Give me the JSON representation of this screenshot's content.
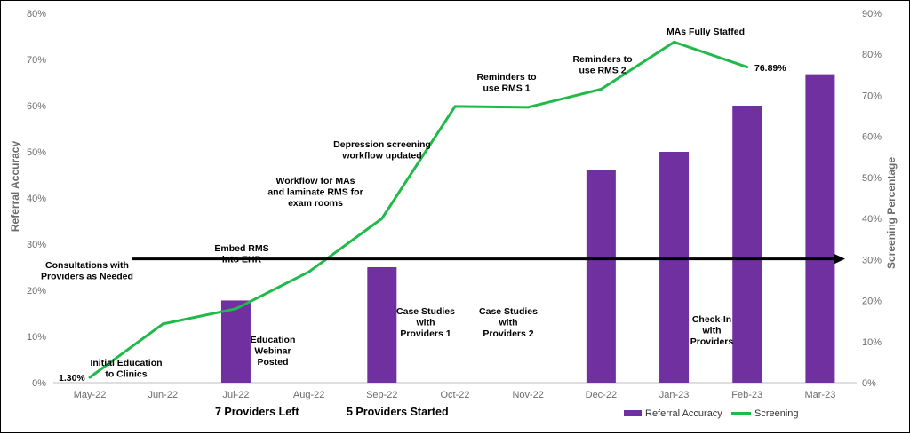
{
  "chart_data": {
    "type": "bar",
    "categories": [
      "May-22",
      "Jun-22",
      "Jul-22",
      "Aug-22",
      "Sep-22",
      "Oct-22",
      "Nov-22",
      "Dec-22",
      "Jan-23",
      "Feb-23",
      "Mar-23"
    ],
    "series": [
      {
        "name": "Referral Accuracy",
        "type": "bar",
        "axis": "left",
        "color": "#7030a0",
        "values": [
          null,
          null,
          17.8,
          null,
          25.0,
          null,
          null,
          46.0,
          50.0,
          60.0,
          66.8
        ]
      },
      {
        "name": "Screening",
        "type": "line",
        "axis": "right",
        "color": "#1fba4a",
        "values": [
          1.3,
          14.3,
          18.0,
          27.0,
          40.0,
          67.3,
          67.1,
          71.5,
          83.0,
          76.89,
          null
        ]
      }
    ],
    "ylabel": "Referral Accuracy",
    "y2label": "Screening Percentage",
    "ylim": [
      0,
      80
    ],
    "y2lim": [
      0,
      90
    ],
    "yticks": [
      "0%",
      "10%",
      "20%",
      "30%",
      "40%",
      "50%",
      "60%",
      "70%",
      "80%"
    ],
    "y2ticks": [
      "0%",
      "10%",
      "20%",
      "30%",
      "40%",
      "50%",
      "60%",
      "70%",
      "80%",
      "90%"
    ],
    "data_labels": {
      "first_point": "1.30%",
      "last_point": "76.89%"
    },
    "reference_arrow": {
      "value": 26.8,
      "axis": "left"
    },
    "legend": {
      "position": "bottom-right",
      "items": [
        {
          "label": "Referral Accuracy",
          "color": "#7030a0",
          "kind": "bar"
        },
        {
          "label": "Screening",
          "color": "#1fba4a",
          "kind": "line"
        }
      ]
    },
    "annotations": [
      {
        "lines": [
          "Initial Education",
          "to Clinics"
        ]
      },
      {
        "lines": [
          "Consultations with",
          "Providers as Needed"
        ]
      },
      {
        "lines": [
          "Embed RMS",
          "into EHR"
        ]
      },
      {
        "lines": [
          "Education",
          "Webinar",
          "Posted"
        ]
      },
      {
        "lines": [
          "Workflow for MAs",
          "and laminate RMS for",
          "exam rooms"
        ]
      },
      {
        "lines": [
          "Depression screening",
          "workflow updated"
        ]
      },
      {
        "lines": [
          "Case Studies",
          "with",
          "Providers 1"
        ]
      },
      {
        "lines": [
          "Reminders to",
          "use RMS 1"
        ]
      },
      {
        "lines": [
          "Case Studies",
          "with",
          "Providers 2"
        ]
      },
      {
        "lines": [
          "Reminders to",
          "use RMS 2"
        ]
      },
      {
        "lines": [
          "MAs Fully Staffed"
        ]
      },
      {
        "lines": [
          "Check-In",
          "with",
          "Providers"
        ]
      }
    ],
    "bottom_labels": [
      "7 Providers Left",
      "5 Providers Started"
    ],
    "grid": false
  }
}
